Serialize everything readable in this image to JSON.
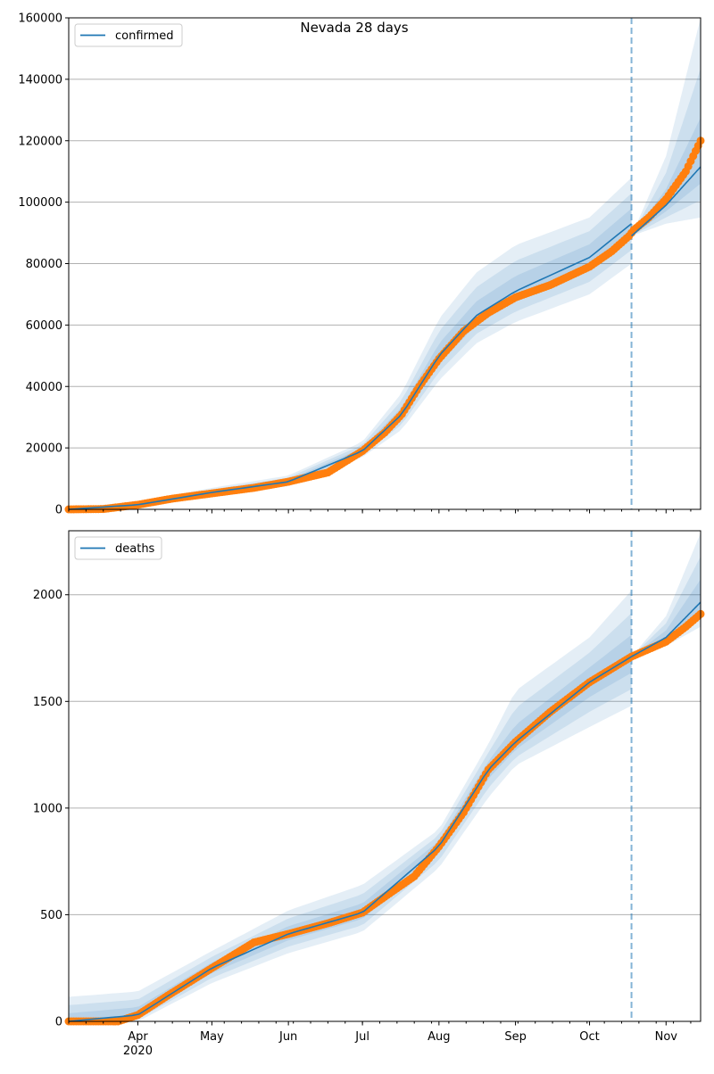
{
  "title": "Nevada 28 days",
  "colors": {
    "line": "#1f77b4",
    "obs": "#ff7f0e",
    "band": "#1f77b4",
    "grid": "#b0b0b0"
  },
  "x_axis": {
    "start_date": "2020-03-04",
    "end_day": 256,
    "forecast_start_day": 228,
    "ticks": [
      {
        "day": 28,
        "label": "Apr"
      },
      {
        "day": 58,
        "label": "May"
      },
      {
        "day": 89,
        "label": "Jun"
      },
      {
        "day": 119,
        "label": "Jul"
      },
      {
        "day": 150,
        "label": "Aug"
      },
      {
        "day": 181,
        "label": "Sep"
      },
      {
        "day": 211,
        "label": "Oct"
      },
      {
        "day": 242,
        "label": "Nov"
      }
    ],
    "year_label": "2020"
  },
  "chart_data": [
    {
      "type": "line",
      "legend": "confirmed",
      "legend_position": "top-left",
      "ylim": [
        0,
        160000
      ],
      "yticks": [
        0,
        20000,
        40000,
        60000,
        80000,
        100000,
        120000,
        140000,
        160000
      ],
      "grid": true,
      "band_levels": [
        1,
        0.66,
        0.33
      ],
      "observed": {
        "days": [
          0,
          14,
          28,
          42,
          58,
          75,
          89,
          105,
          119,
          128,
          135,
          142,
          150,
          160,
          170,
          181,
          195,
          211,
          220,
          227,
          229,
          235,
          242,
          250,
          256
        ],
        "values": [
          0,
          100,
          1500,
          3500,
          5200,
          7000,
          9000,
          12000,
          19000,
          25000,
          31000,
          40000,
          49000,
          58000,
          64000,
          69000,
          73000,
          79000,
          84000,
          89000,
          91000,
          95000,
          101000,
          110000,
          120000
        ]
      },
      "fit": {
        "days": [
          0,
          28,
          58,
          89,
          119,
          135,
          150,
          165,
          181,
          211,
          228
        ],
        "model": [
          0,
          1500,
          5500,
          9000,
          19000,
          31000,
          50000,
          63000,
          71000,
          82000,
          93000
        ],
        "upper": [
          500,
          2500,
          7000,
          11000,
          22000,
          38000,
          62000,
          77000,
          86000,
          95000,
          108000
        ],
        "lower": [
          0,
          800,
          4500,
          7500,
          17000,
          26000,
          42000,
          54000,
          61000,
          70000,
          80000
        ]
      },
      "forecast": {
        "days": [
          228,
          242,
          256
        ],
        "model": [
          89000,
          99000,
          111500
        ],
        "upper": [
          89000,
          115000,
          160000
        ],
        "lower": [
          89000,
          93000,
          95000
        ]
      }
    },
    {
      "type": "line",
      "legend": "deaths",
      "legend_position": "top-left",
      "ylim": [
        0,
        2300
      ],
      "yticks": [
        0,
        500,
        1000,
        1500,
        2000
      ],
      "grid": true,
      "band_levels": [
        1,
        0.66,
        0.33
      ],
      "observed": {
        "days": [
          0,
          20,
          28,
          40,
          58,
          75,
          89,
          105,
          119,
          130,
          140,
          150,
          160,
          170,
          181,
          195,
          211,
          228,
          242,
          250,
          256
        ],
        "values": [
          0,
          0,
          30,
          120,
          250,
          370,
          410,
          460,
          510,
          600,
          680,
          820,
          980,
          1180,
          1310,
          1450,
          1590,
          1710,
          1780,
          1850,
          1910
        ]
      },
      "fit": {
        "days": [
          0,
          28,
          58,
          89,
          119,
          150,
          170,
          181,
          211,
          228
        ],
        "model": [
          0,
          30,
          250,
          410,
          510,
          820,
          1180,
          1310,
          1590,
          1710
        ],
        "upper": [
          115,
          140,
          330,
          520,
          640,
          900,
          1300,
          1550,
          1800,
          2020
        ],
        "lower": [
          0,
          0,
          180,
          320,
          420,
          720,
          1050,
          1200,
          1380,
          1480
        ]
      },
      "forecast": {
        "days": [
          228,
          242,
          256
        ],
        "model": [
          1710,
          1800,
          1965
        ],
        "upper": [
          1710,
          1900,
          2290
        ],
        "lower": [
          1710,
          1760,
          1850
        ]
      }
    }
  ]
}
